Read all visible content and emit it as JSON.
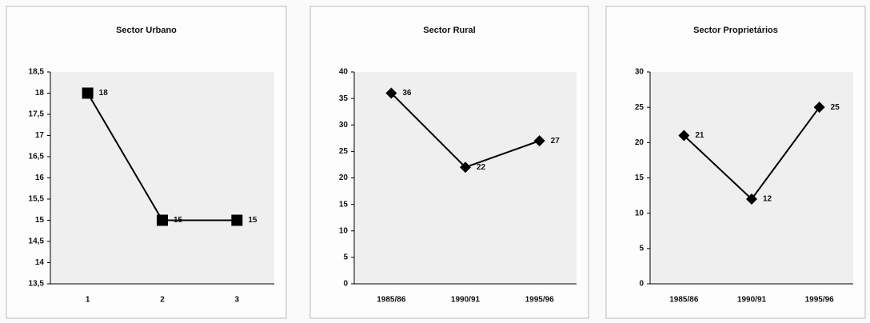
{
  "chart_data": [
    {
      "type": "line",
      "title": "Sector Urbano",
      "categories": [
        "1",
        "2",
        "3"
      ],
      "values": [
        18,
        15,
        15
      ],
      "color": "#000000",
      "marker": "square",
      "ylim": [
        13.5,
        18.5
      ],
      "yticks": [
        {
          "value": 13.5,
          "label": "13,5"
        },
        14,
        {
          "value": 14.5,
          "label": "14,5"
        },
        15,
        {
          "value": 15.5,
          "label": "15,5"
        },
        16,
        {
          "value": 16.5,
          "label": "16,5"
        },
        17,
        {
          "value": 17.5,
          "label": "17,5"
        },
        18,
        {
          "value": 18.5,
          "label": "18,5"
        }
      ]
    },
    {
      "type": "line",
      "title": "Sector Rural",
      "categories": [
        "1985/86",
        "1990/91",
        "1995/96"
      ],
      "values": [
        36,
        22,
        27
      ],
      "color": "#000000",
      "marker": "diamond",
      "ylim": [
        0,
        40
      ],
      "yticks": [
        0,
        5,
        10,
        15,
        20,
        25,
        30,
        35,
        40
      ]
    },
    {
      "type": "line",
      "title": "Sector Proprietários",
      "categories": [
        "1985/86",
        "1990/91",
        "1995/96"
      ],
      "values": [
        21,
        12,
        25
      ],
      "color": "#000000",
      "marker": "diamond",
      "ylim": [
        0,
        30
      ],
      "yticks": [
        0,
        5,
        10,
        15,
        20,
        25,
        30
      ]
    }
  ]
}
